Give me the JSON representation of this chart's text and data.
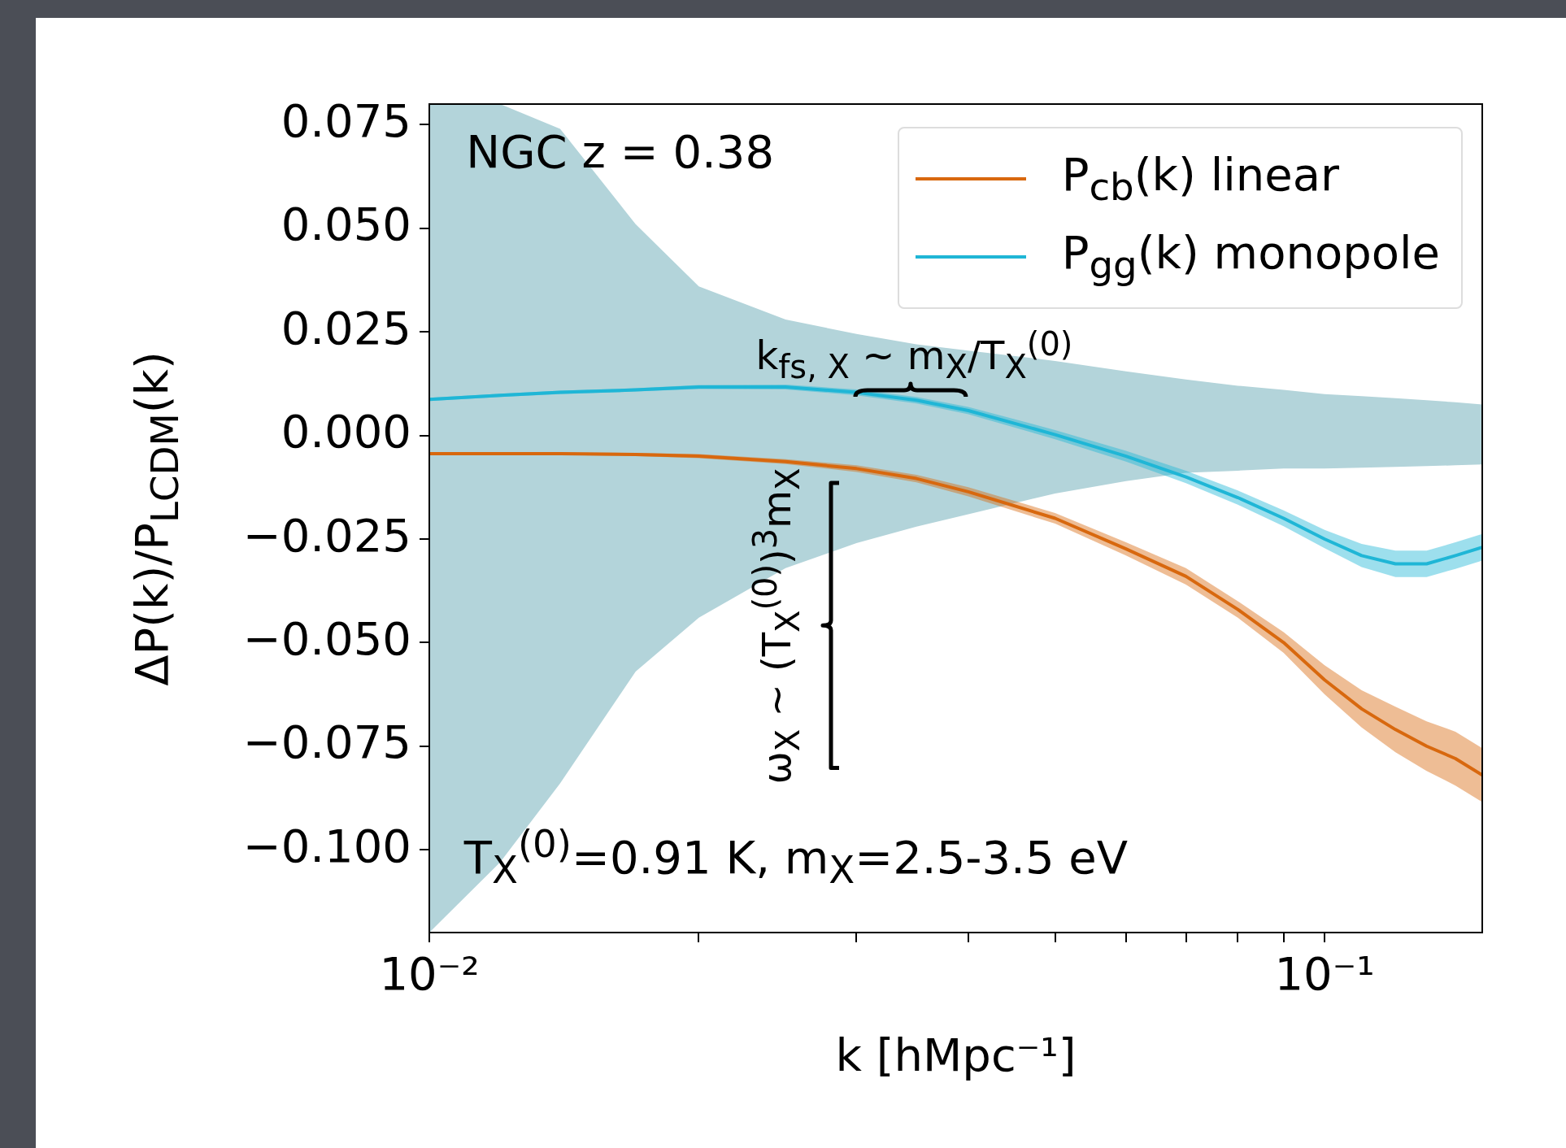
{
  "chart_data": {
    "type": "line",
    "xlabel": "k  [hMpc⁻¹]",
    "ylabel": "ΔP(k)/P$_{LCDM}$(k)",
    "x": [
      0.01,
      0.012,
      0.014,
      0.017,
      0.02,
      0.025,
      0.03,
      0.035,
      0.04,
      0.05,
      0.06,
      0.07,
      0.08,
      0.09,
      0.1,
      0.11,
      0.12,
      0.13,
      0.14,
      0.15
    ],
    "series": [
      {
        "type": "area",
        "color": "#b3d4da",
        "values": [
          null,
          null,
          null,
          null,
          null,
          null,
          null,
          null,
          null,
          null,
          null,
          null,
          null,
          null,
          null,
          null,
          null,
          null,
          null,
          null
        ],
        "upper": [
          0.08,
          0.08,
          0.074,
          0.051,
          0.036,
          0.028,
          0.0245,
          0.022,
          0.0205,
          0.018,
          0.0155,
          0.0135,
          0.012,
          0.011,
          0.01,
          0.0095,
          0.009,
          0.0085,
          0.008,
          0.0075
        ],
        "lower": [
          -0.12,
          -0.103,
          -0.084,
          -0.057,
          -0.044,
          -0.032,
          -0.026,
          -0.022,
          -0.019,
          -0.014,
          -0.011,
          -0.009,
          -0.0085,
          -0.008,
          -0.008,
          -0.0078,
          -0.0076,
          -0.0074,
          -0.0072,
          -0.007
        ]
      },
      {
        "name": "P$_{cb}$(k) linear",
        "color": "#d8680e",
        "values": [
          -0.0044,
          -0.0044,
          -0.0044,
          -0.0046,
          -0.005,
          -0.0063,
          -0.008,
          -0.0104,
          -0.0136,
          -0.02,
          -0.0274,
          -0.034,
          -0.042,
          -0.05,
          -0.059,
          -0.066,
          -0.071,
          -0.075,
          -0.078,
          -0.082
        ],
        "lower": [
          -0.0047,
          -0.0047,
          -0.0047,
          -0.005,
          -0.0055,
          -0.0069,
          -0.0088,
          -0.0113,
          -0.0147,
          -0.0213,
          -0.029,
          -0.036,
          -0.044,
          -0.0525,
          -0.0625,
          -0.0705,
          -0.0765,
          -0.081,
          -0.0845,
          -0.0885
        ],
        "upper": [
          -0.0041,
          -0.0041,
          -0.0041,
          -0.0042,
          -0.0045,
          -0.0057,
          -0.0072,
          -0.0095,
          -0.0125,
          -0.0187,
          -0.0258,
          -0.032,
          -0.04,
          -0.0475,
          -0.0555,
          -0.0615,
          -0.0655,
          -0.069,
          -0.0715,
          -0.0755
        ]
      },
      {
        "name": "P$_{gg}$(k) monopole",
        "color": "#1fb6d6",
        "values": [
          0.0087,
          0.0097,
          0.0104,
          0.011,
          0.0117,
          0.0117,
          0.0104,
          0.0085,
          0.006,
          0.0002,
          -0.005,
          -0.01,
          -0.015,
          -0.02,
          -0.025,
          -0.029,
          -0.031,
          -0.031,
          -0.029,
          -0.027
        ],
        "lower": [
          0.0083,
          0.0093,
          0.01,
          0.0106,
          0.0112,
          0.0111,
          0.0097,
          0.0077,
          0.0051,
          -0.0009,
          -0.0063,
          -0.0115,
          -0.0167,
          -0.0219,
          -0.0272,
          -0.0318,
          -0.0342,
          -0.0342,
          -0.0322,
          -0.0302
        ],
        "upper": [
          0.0091,
          0.0101,
          0.0108,
          0.0114,
          0.0122,
          0.0123,
          0.0111,
          0.0093,
          0.0069,
          0.0013,
          -0.0037,
          -0.0085,
          -0.0133,
          -0.0181,
          -0.0228,
          -0.0262,
          -0.0278,
          -0.0278,
          -0.0258,
          -0.0238
        ]
      }
    ],
    "xlim": [
      0.01,
      0.15
    ],
    "ylim": [
      -0.12,
      0.08
    ],
    "xticks": [
      {
        "value": 0.01,
        "label": "10⁻²"
      },
      {
        "value": 0.02,
        "label": null
      },
      {
        "value": 0.03,
        "label": null
      },
      {
        "value": 0.04,
        "label": null
      },
      {
        "value": 0.05,
        "label": null
      },
      {
        "value": 0.06,
        "label": null
      },
      {
        "value": 0.07,
        "label": null
      },
      {
        "value": 0.08,
        "label": null
      },
      {
        "value": 0.09,
        "label": null
      },
      {
        "value": 0.1,
        "label": "10⁻¹"
      }
    ],
    "yticks": [
      {
        "value": -0.1,
        "label": "−0.100"
      },
      {
        "value": -0.075,
        "label": "−0.075"
      },
      {
        "value": -0.05,
        "label": "−0.050"
      },
      {
        "value": -0.025,
        "label": "−0.025"
      },
      {
        "value": 0,
        "label": "0.000"
      },
      {
        "value": 0.025,
        "label": "0.025"
      },
      {
        "value": 0.05,
        "label": "0.050"
      },
      {
        "value": 0.075,
        "label": "0.075"
      }
    ],
    "log": "x",
    "grid": false,
    "legend": "top right",
    "marker": "none",
    "line_style": "solid",
    "annotations": [
      "NGC z = 0.38",
      "k$_{fs, X}$ ~ m$_{X}$/T$_{X}$$^{(0)}$",
      "ω$_{X}$ ~ (T$_{X}$$^{(0)}$)$^{3}$m$_{X}$",
      "T$_{X}$$^{(0)}$=0.91 K, m$_{X}$=2.5-3.5 eV"
    ]
  }
}
